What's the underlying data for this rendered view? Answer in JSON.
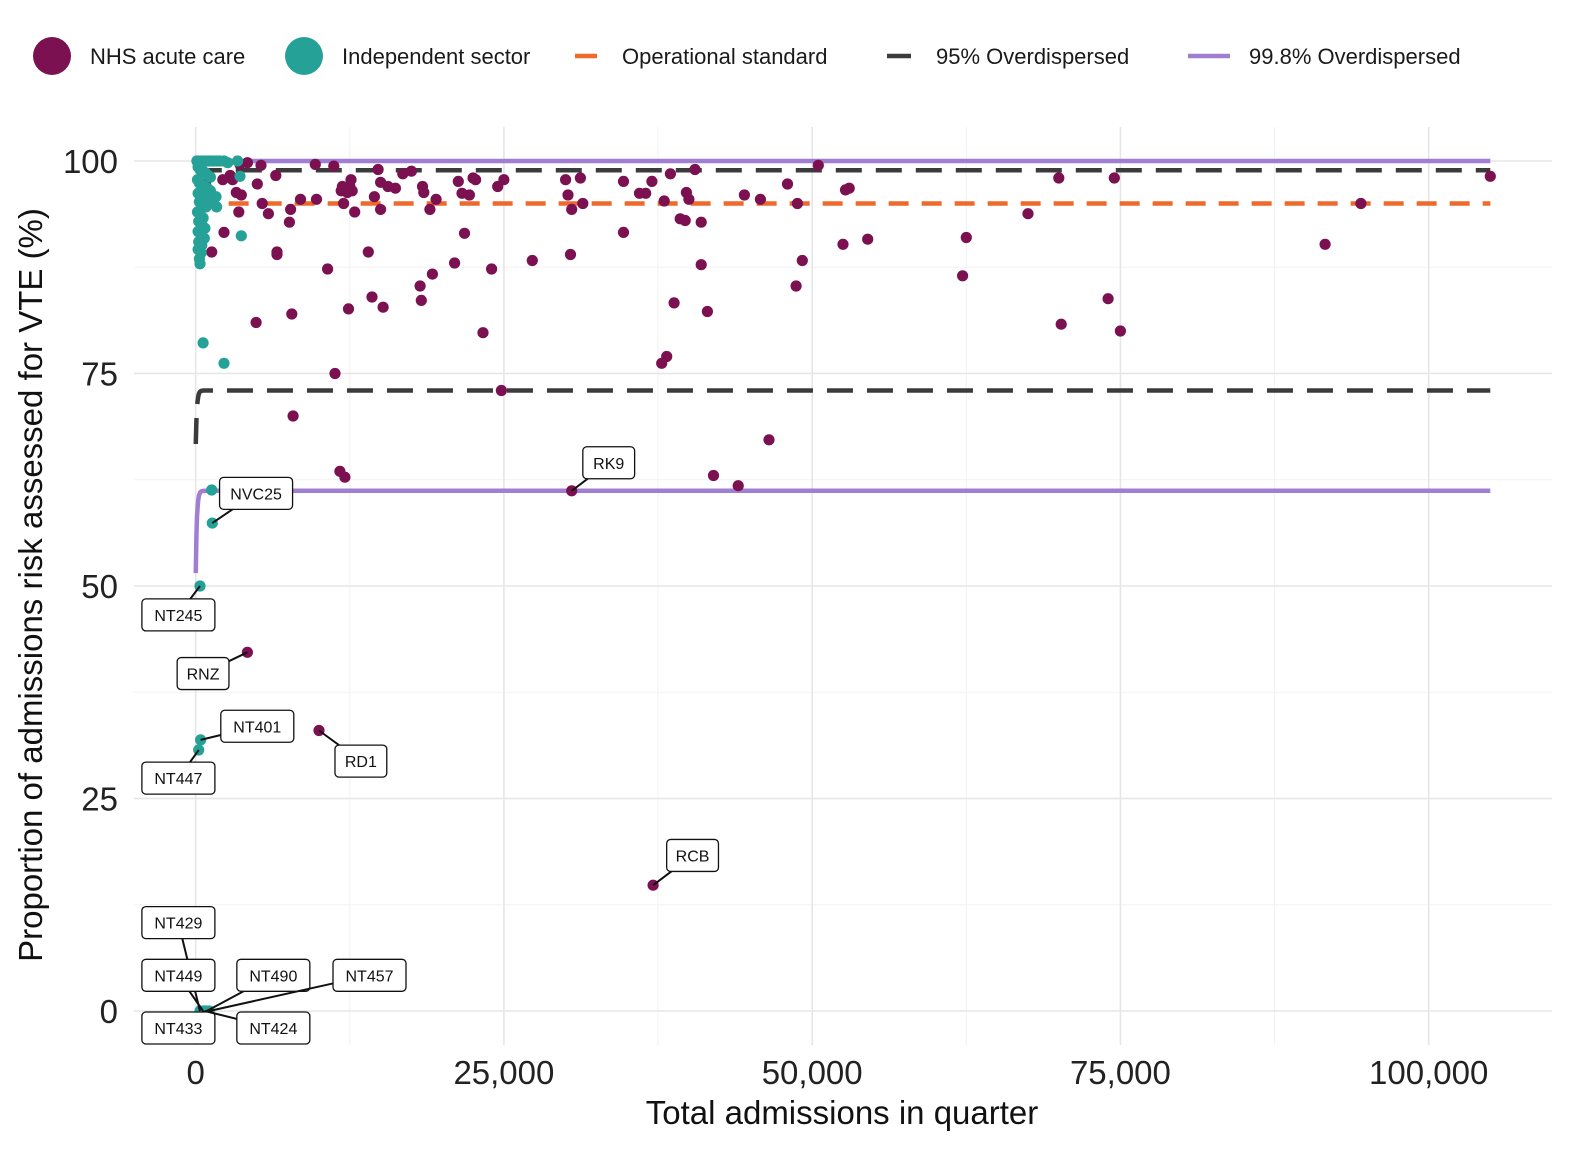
{
  "chart_data": {
    "type": "scatter",
    "title": "",
    "xlabel": "Total admissions in quarter",
    "ylabel": "Proportion of admissions risk assessed for VTE (%)",
    "xlim": [
      -5000,
      110000
    ],
    "ylim": [
      -4,
      104
    ],
    "x_ticks": [
      0,
      25000,
      50000,
      75000,
      100000
    ],
    "x_tick_labels": [
      "0",
      "25,000",
      "50,000",
      "75,000",
      "100,000"
    ],
    "y_ticks": [
      0,
      25,
      50,
      75,
      100
    ],
    "y_tick_labels": [
      "0",
      "25",
      "50",
      "75",
      "100"
    ],
    "grid": true,
    "legend_position": "top",
    "legend": [
      {
        "label": "NHS acute care",
        "kind": "point",
        "color": "#7B1150"
      },
      {
        "label": "Independent sector",
        "kind": "point",
        "color": "#26A198"
      },
      {
        "label": "Operational standard",
        "kind": "dash-short",
        "color": "#EE6A2C"
      },
      {
        "label": "95% Overdispersed",
        "kind": "dash-long",
        "color": "#3B3B3B"
      },
      {
        "label": "99.8% Overdispersed",
        "kind": "solid",
        "color": "#A07FD2"
      }
    ],
    "reference_lines": [
      {
        "name": "Operational standard",
        "y": 95,
        "color": "#EE6A2C",
        "style": "dashed"
      }
    ],
    "funnel": {
      "target": 95,
      "x_end": 105000,
      "limits": [
        {
          "name": "95% Overdispersed",
          "upper": 98.9,
          "lower": 73.0,
          "color": "#3B3B3B",
          "style": "dashed"
        },
        {
          "name": "99.8% Overdispersed",
          "upper": 100,
          "lower": 61.2,
          "color": "#A07FD2",
          "style": "solid"
        }
      ]
    },
    "series": [
      {
        "name": "NHS acute care",
        "color": "#7B1150",
        "points": [
          [
            105000,
            98.2
          ],
          [
            94500,
            95
          ],
          [
            91600,
            90.2
          ],
          [
            75000,
            80
          ],
          [
            74500,
            98
          ],
          [
            74000,
            83.8
          ],
          [
            70200,
            80.8
          ],
          [
            70000,
            98
          ],
          [
            67500,
            93.8
          ],
          [
            62500,
            91
          ],
          [
            62200,
            86.5
          ],
          [
            54500,
            90.8
          ],
          [
            53000,
            96.8
          ],
          [
            52700,
            96.6
          ],
          [
            52500,
            90.2
          ],
          [
            50500,
            99.5
          ],
          [
            49200,
            88.3
          ],
          [
            48800,
            95
          ],
          [
            48700,
            85.3
          ],
          [
            48000,
            97.3
          ],
          [
            46500,
            67.2
          ],
          [
            45800,
            95.5
          ],
          [
            44500,
            96
          ],
          [
            44000,
            61.8
          ],
          [
            42000,
            63
          ],
          [
            41500,
            82.3
          ],
          [
            41000,
            92.8
          ],
          [
            41000,
            87.8
          ],
          [
            40500,
            99
          ],
          [
            40000,
            95.5
          ],
          [
            39800,
            96.3
          ],
          [
            39700,
            93
          ],
          [
            39300,
            93.2
          ],
          [
            38800,
            83.3
          ],
          [
            38500,
            98.5
          ],
          [
            38200,
            77
          ],
          [
            38000,
            95.3
          ],
          [
            37800,
            76.2
          ],
          [
            37100,
            14.8
          ],
          [
            37000,
            97.6
          ],
          [
            36500,
            96.2
          ],
          [
            36000,
            96.2
          ],
          [
            34700,
            91.6
          ],
          [
            34700,
            97.6
          ],
          [
            31400,
            95
          ],
          [
            31200,
            98
          ],
          [
            30500,
            61.2
          ],
          [
            30500,
            94.3
          ],
          [
            30400,
            89
          ],
          [
            30200,
            96
          ],
          [
            30000,
            97.8
          ],
          [
            27300,
            88.3
          ],
          [
            25000,
            97.8
          ],
          [
            24800,
            73
          ],
          [
            24500,
            97
          ],
          [
            24000,
            87.3
          ],
          [
            23300,
            79.8
          ],
          [
            22700,
            97.8
          ],
          [
            22500,
            98
          ],
          [
            22200,
            96
          ],
          [
            21800,
            91.5
          ],
          [
            21600,
            96.2
          ],
          [
            21300,
            97.6
          ],
          [
            21000,
            88
          ],
          [
            19500,
            95.5
          ],
          [
            19200,
            86.7
          ],
          [
            19000,
            94.3
          ],
          [
            18500,
            96.3
          ],
          [
            18400,
            97
          ],
          [
            18300,
            83.6
          ],
          [
            18200,
            85.3
          ],
          [
            17500,
            98.8
          ],
          [
            16800,
            98.5
          ],
          [
            16200,
            96.8
          ],
          [
            15600,
            97
          ],
          [
            15200,
            82.8
          ],
          [
            15000,
            94.3
          ],
          [
            15000,
            97.5
          ],
          [
            14800,
            99
          ],
          [
            14500,
            95.8
          ],
          [
            14300,
            84
          ],
          [
            14000,
            89.3
          ],
          [
            12900,
            94
          ],
          [
            12700,
            96.5
          ],
          [
            12600,
            97.8
          ],
          [
            12500,
            97
          ],
          [
            12400,
            82.6
          ],
          [
            12300,
            96.3
          ],
          [
            12100,
            62.8
          ],
          [
            12000,
            95
          ],
          [
            11900,
            97
          ],
          [
            11800,
            96.5
          ],
          [
            11700,
            63.5
          ],
          [
            11300,
            75
          ],
          [
            11200,
            99.4
          ],
          [
            10700,
            87.3
          ],
          [
            10000,
            33
          ],
          [
            9800,
            95.5
          ],
          [
            9700,
            99.6
          ],
          [
            8500,
            95.5
          ],
          [
            7900,
            70
          ],
          [
            7800,
            82
          ],
          [
            7700,
            94.3
          ],
          [
            7600,
            92.8
          ],
          [
            6600,
            89.3
          ],
          [
            6600,
            89
          ],
          [
            6500,
            98.3
          ],
          [
            5900,
            93.8
          ],
          [
            5400,
            95
          ],
          [
            5300,
            99.5
          ],
          [
            5000,
            97.3
          ],
          [
            4900,
            81
          ],
          [
            4200,
            42.2
          ],
          [
            4200,
            99.8
          ],
          [
            3700,
            96
          ],
          [
            3600,
            99.6
          ],
          [
            3500,
            94
          ],
          [
            3300,
            96.3
          ],
          [
            3000,
            97.8
          ],
          [
            2800,
            98.3
          ],
          [
            2300,
            91.6
          ],
          [
            2200,
            97.8
          ],
          [
            1300,
            89.3
          ],
          [
            800,
            97.3
          ],
          [
            600,
            96.2
          ],
          [
            500,
            92
          ]
        ]
      },
      {
        "name": "Independent sector",
        "color": "#26A198",
        "points": [
          [
            100,
            100
          ],
          [
            250,
            100
          ],
          [
            450,
            100
          ],
          [
            650,
            100
          ],
          [
            850,
            100
          ],
          [
            1050,
            100
          ],
          [
            1250,
            100
          ],
          [
            1450,
            100
          ],
          [
            1700,
            100
          ],
          [
            1950,
            100
          ],
          [
            2300,
            100
          ],
          [
            2600,
            99.8
          ],
          [
            3400,
            100
          ],
          [
            3600,
            98.2
          ],
          [
            200,
            99.3
          ],
          [
            350,
            99
          ],
          [
            550,
            98.9
          ],
          [
            800,
            98.6
          ],
          [
            1000,
            98.3
          ],
          [
            1200,
            98.1
          ],
          [
            150,
            97.8
          ],
          [
            300,
            97.4
          ],
          [
            500,
            97.2
          ],
          [
            700,
            97
          ],
          [
            950,
            96.8
          ],
          [
            1200,
            96.5
          ],
          [
            200,
            96.2
          ],
          [
            400,
            95.9
          ],
          [
            650,
            95.7
          ],
          [
            1050,
            95.5
          ],
          [
            1650,
            95.8
          ],
          [
            300,
            95.2
          ],
          [
            550,
            94.9
          ],
          [
            850,
            94.6
          ],
          [
            1700,
            94.6
          ],
          [
            150,
            94
          ],
          [
            400,
            93.6
          ],
          [
            600,
            93.3
          ],
          [
            250,
            92.9
          ],
          [
            500,
            92.5
          ],
          [
            750,
            92.1
          ],
          [
            200,
            91.7
          ],
          [
            450,
            91.3
          ],
          [
            700,
            90.9
          ],
          [
            250,
            90.5
          ],
          [
            500,
            90.1
          ],
          [
            200,
            89.6
          ],
          [
            450,
            89.2
          ],
          [
            300,
            88.5
          ],
          [
            350,
            87.9
          ],
          [
            3700,
            91.2
          ],
          [
            600,
            78.6
          ],
          [
            2300,
            76.2
          ],
          [
            1300,
            61.3
          ],
          [
            1350,
            57.4
          ],
          [
            350,
            50
          ],
          [
            400,
            31.9
          ],
          [
            250,
            30.7
          ],
          [
            350,
            0
          ],
          [
            600,
            0
          ],
          [
            900,
            0
          ],
          [
            1100,
            0
          ],
          [
            750,
            0
          ]
        ]
      }
    ],
    "labels": [
      {
        "text": "RK9",
        "x": 30500,
        "y": 61.2,
        "lx": 33500,
        "ly": 64.5
      },
      {
        "text": "NVC25",
        "x": 1350,
        "y": 57.4,
        "lx": 4900,
        "ly": 60.9
      },
      {
        "text": "NT245",
        "x": 350,
        "y": 50,
        "lx": -1400,
        "ly": 46.6
      },
      {
        "text": "RNZ",
        "x": 4200,
        "y": 42.2,
        "lx": 600,
        "ly": 39.7
      },
      {
        "text": "NT401",
        "x": 400,
        "y": 31.9,
        "lx": 5000,
        "ly": 33.5
      },
      {
        "text": "RD1",
        "x": 10000,
        "y": 33,
        "lx": 13400,
        "ly": 29.4
      },
      {
        "text": "NT447",
        "x": 250,
        "y": 30.7,
        "lx": -1400,
        "ly": 27.4
      },
      {
        "text": "RCB",
        "x": 37100,
        "y": 14.8,
        "lx": 40300,
        "ly": 18.3
      },
      {
        "text": "NT429",
        "x": 350,
        "y": 0,
        "lx": -1400,
        "ly": 10.4
      },
      {
        "text": "NT449",
        "x": 600,
        "y": 0,
        "lx": -1400,
        "ly": 4.2
      },
      {
        "text": "NT490",
        "x": 900,
        "y": 0,
        "lx": 6300,
        "ly": 4.2
      },
      {
        "text": "NT457",
        "x": 1100,
        "y": 0,
        "lx": 14100,
        "ly": 4.2
      },
      {
        "text": "NT433",
        "x": 750,
        "y": 0,
        "lx": -1400,
        "ly": -2
      },
      {
        "text": "NT424",
        "x": 750,
        "y": 0,
        "lx": 6300,
        "ly": -2
      }
    ]
  }
}
